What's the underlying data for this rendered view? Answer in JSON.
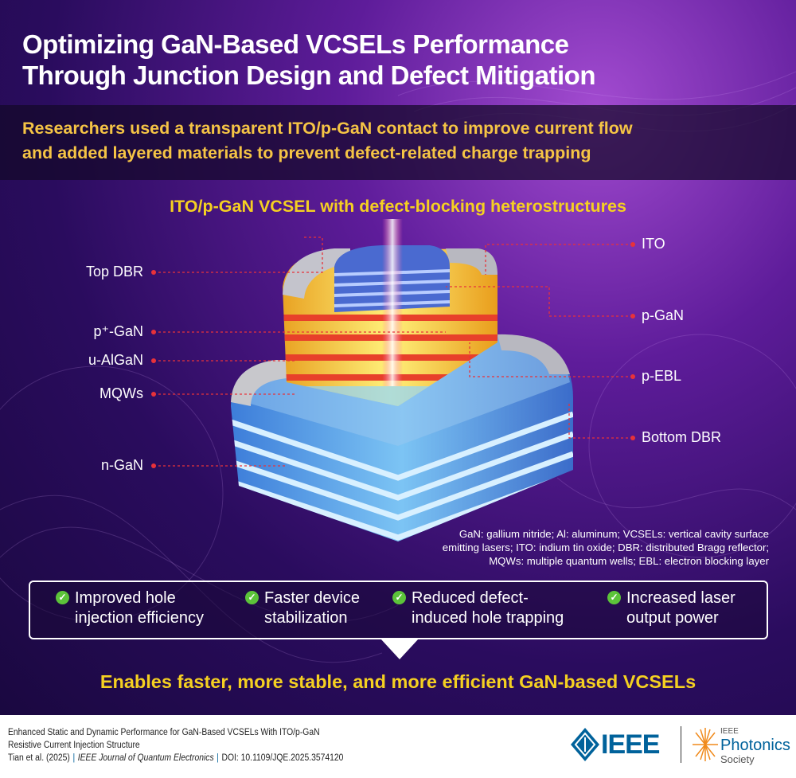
{
  "title": [
    "Optimizing GaN-Based VCSELs Performance",
    "Through Junction Design and Defect Mitigation"
  ],
  "summary": [
    "Researchers used a transparent ITO/p-GaN contact to improve current flow",
    "and added layered materials to prevent defect-related charge trapping"
  ],
  "diagram": {
    "title": "ITO/p-GaN VCSEL with defect-blocking heterostructures",
    "left_labels": [
      "Top DBR",
      "p⁺-GaN",
      "u-AlGaN",
      "MQWs",
      "n-GaN"
    ],
    "right_labels": [
      "ITO",
      "p-GaN",
      "p-EBL",
      "Bottom DBR"
    ],
    "abbreviations": [
      "GaN: gallium nitride; Al: aluminum; VCSELs: vertical cavity surface",
      "emitting lasers; ITO: indium tin oxide; DBR: distributed Bragg reflector;",
      "MQWs: multiple quantum wells; EBL: electron blocking layer"
    ],
    "colors": {
      "label_dot": "#e8323a",
      "bottom_dbr": "#5aa8e8",
      "p_layers": "#f5c230",
      "red_layers": "#e83a2a"
    }
  },
  "benefits": [
    {
      "icon": "check-circle-icon",
      "lines": [
        "Improved hole",
        "injection efficiency"
      ]
    },
    {
      "icon": "check-circle-icon",
      "lines": [
        "Faster device",
        "stabilization"
      ]
    },
    {
      "icon": "check-circle-icon",
      "lines": [
        "Reduced defect-",
        "induced hole trapping"
      ]
    },
    {
      "icon": "check-circle-icon",
      "lines": [
        "Increased laser",
        "output power"
      ]
    }
  ],
  "conclusion": "Enables faster, more stable, and more efficient GaN-based VCSELs",
  "footer": {
    "paper_title": [
      "Enhanced Static and Dynamic Performance for GaN-Based VCSELs With ITO/p-GaN",
      "Resistive Current Injection Structure"
    ],
    "authors": "Tian et al. (2025)",
    "journal": "IEEE Journal of Quantum Electronics",
    "doi": "DOI: 10.1109/JQE.2025.3574120",
    "logo_ieee": "IEEE",
    "logo_society": [
      "IEEE",
      "Photonics",
      "Society"
    ]
  }
}
